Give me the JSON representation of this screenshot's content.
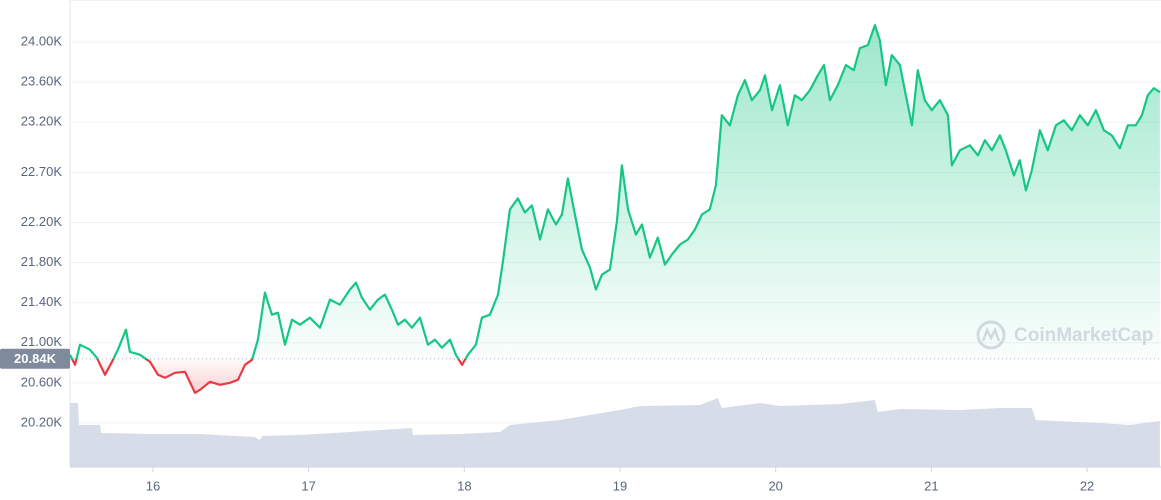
{
  "chart_data": {
    "type": "line",
    "watermark": "CoinMarketCap",
    "xlim": [
      15.467,
      22.475
    ],
    "xticks": [
      16,
      17,
      18,
      19,
      20,
      21,
      22
    ],
    "ylim": [
      19760,
      24420
    ],
    "yticks": [
      {
        "value": 20200,
        "label": "20.20K"
      },
      {
        "value": 20600,
        "label": "20.60K"
      },
      {
        "value": 21000,
        "label": "21.00K"
      },
      {
        "value": 21400,
        "label": "21.40K"
      },
      {
        "value": 21800,
        "label": "21.80K"
      },
      {
        "value": 22200,
        "label": "22.20K"
      },
      {
        "value": 22700,
        "label": "22.70K"
      },
      {
        "value": 23200,
        "label": "23.20K"
      },
      {
        "value": 23600,
        "label": "23.60K"
      },
      {
        "value": 24000,
        "label": "24.00K"
      }
    ],
    "grid": true,
    "baseline": {
      "value": 20840,
      "label": "20.84K"
    },
    "up_color": "#16c784",
    "down_color": "#ea3943",
    "x": [
      15.467,
      15.499,
      15.531,
      15.595,
      15.64,
      15.692,
      15.737,
      15.775,
      15.827,
      15.852,
      15.917,
      15.981,
      16.032,
      16.077,
      16.141,
      16.206,
      16.27,
      16.302,
      16.366,
      16.43,
      16.495,
      16.546,
      16.591,
      16.636,
      16.674,
      16.719,
      16.764,
      16.803,
      16.848,
      16.893,
      16.944,
      17.008,
      17.073,
      17.137,
      17.201,
      17.265,
      17.304,
      17.342,
      17.394,
      17.445,
      17.49,
      17.535,
      17.574,
      17.618,
      17.663,
      17.715,
      17.766,
      17.811,
      17.856,
      17.908,
      17.946,
      17.985,
      18.023,
      18.074,
      18.113,
      18.164,
      18.216,
      18.248,
      18.293,
      18.344,
      18.389,
      18.434,
      18.486,
      18.537,
      18.588,
      18.627,
      18.665,
      18.71,
      18.755,
      18.807,
      18.845,
      18.884,
      18.935,
      18.98,
      19.012,
      19.051,
      19.102,
      19.141,
      19.192,
      19.243,
      19.288,
      19.333,
      19.385,
      19.436,
      19.481,
      19.526,
      19.577,
      19.616,
      19.654,
      19.706,
      19.757,
      19.802,
      19.847,
      19.899,
      19.931,
      19.976,
      20.027,
      20.078,
      20.123,
      20.168,
      20.22,
      20.271,
      20.31,
      20.348,
      20.399,
      20.451,
      20.502,
      20.541,
      20.592,
      20.637,
      20.669,
      20.708,
      20.746,
      20.798,
      20.836,
      20.875,
      20.913,
      20.958,
      21.003,
      21.055,
      21.106,
      21.132,
      21.183,
      21.247,
      21.299,
      21.344,
      21.389,
      21.44,
      21.478,
      21.53,
      21.568,
      21.607,
      21.645,
      21.697,
      21.748,
      21.8,
      21.851,
      21.902,
      21.954,
      22.005,
      22.057,
      22.108,
      22.159,
      22.211,
      22.262,
      22.313,
      22.352,
      22.39,
      22.429,
      22.468
    ],
    "values": [
      20880,
      20780,
      20980,
      20930,
      20850,
      20680,
      20810,
      20930,
      21130,
      20910,
      20880,
      20810,
      20680,
      20650,
      20700,
      20710,
      20500,
      20530,
      20610,
      20580,
      20600,
      20630,
      20780,
      20830,
      21030,
      21500,
      21280,
      21300,
      20980,
      21230,
      21180,
      21250,
      21150,
      21430,
      21380,
      21530,
      21600,
      21450,
      21330,
      21430,
      21480,
      21330,
      21180,
      21230,
      21150,
      21250,
      20980,
      21030,
      20950,
      21030,
      20880,
      20780,
      20880,
      20980,
      21250,
      21280,
      21480,
      21810,
      22330,
      22440,
      22300,
      22370,
      22030,
      22330,
      22180,
      22280,
      22640,
      22280,
      21930,
      21750,
      21530,
      21680,
      21730,
      22210,
      22770,
      22330,
      22080,
      22180,
      21850,
      22050,
      21780,
      21880,
      21980,
      22030,
      22130,
      22280,
      22330,
      22570,
      23270,
      23170,
      23470,
      23620,
      23420,
      23520,
      23670,
      23320,
      23570,
      23170,
      23470,
      23420,
      23520,
      23670,
      23770,
      23420,
      23570,
      23770,
      23720,
      23940,
      23970,
      24170,
      24020,
      23570,
      23870,
      23770,
      23470,
      23170,
      23720,
      23420,
      23320,
      23420,
      23270,
      22770,
      22920,
      22970,
      22870,
      23020,
      22920,
      23070,
      22920,
      22670,
      22820,
      22520,
      22720,
      23120,
      22920,
      23170,
      23220,
      23120,
      23270,
      23170,
      23320,
      23120,
      23070,
      22940,
      23170,
      23170,
      23270,
      23470,
      23540,
      23500
    ],
    "volume": {
      "ylim": [
        0,
        100
      ],
      "x": [
        15.467,
        15.518,
        15.525,
        15.66,
        15.666,
        15.981,
        16.302,
        16.655,
        16.687,
        16.7,
        16.944,
        17.265,
        17.663,
        17.67,
        17.972,
        18.229,
        18.293,
        18.614,
        18.999,
        19.128,
        19.513,
        19.629,
        19.654,
        19.899,
        20.027,
        20.412,
        20.637,
        20.656,
        20.798,
        21.183,
        21.44,
        21.645,
        21.671,
        22.082,
        22.275,
        22.468
      ],
      "values": [
        64,
        64,
        42,
        42,
        34,
        33,
        33,
        30,
        27,
        31,
        32,
        35,
        39,
        32,
        33,
        35,
        42,
        47,
        57,
        61,
        62,
        69,
        59,
        64,
        61,
        63,
        67,
        55,
        58,
        57,
        59,
        59,
        47,
        44,
        42,
        46
      ],
      "color": "#cfd6e4"
    }
  }
}
